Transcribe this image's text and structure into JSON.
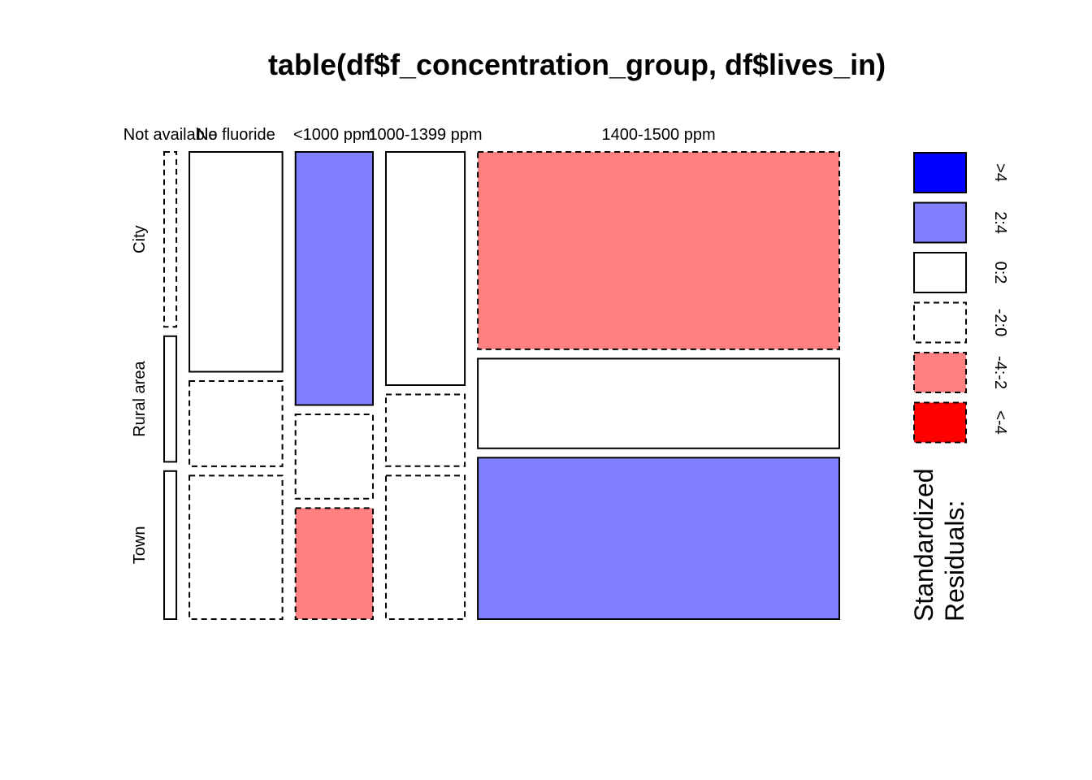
{
  "chart_data": {
    "type": "mosaic",
    "title": "table(df$f_concentration_group, df$lives_in)",
    "columns": [
      "Not available",
      "No fluoride",
      "<1000 ppm",
      "1000-1399 ppm",
      "1400-1500 ppm"
    ],
    "rows": [
      "City",
      "Rural area",
      "Town"
    ],
    "column_shares": [
      0.033,
      0.25,
      0.208,
      0.212,
      0.971
    ],
    "cells": [
      [
        {
          "share": 0.39,
          "residual_bin": "-2:0"
        },
        {
          "share": 0.28,
          "residual_bin": "0:2"
        },
        {
          "share": 0.33,
          "residual_bin": "0:2"
        }
      ],
      [
        {
          "share": 0.49,
          "residual_bin": "0:2"
        },
        {
          "share": 0.19,
          "residual_bin": "-2:0"
        },
        {
          "share": 0.32,
          "residual_bin": "-2:0"
        }
      ],
      [
        {
          "share": 0.57,
          "residual_bin": "2:4"
        },
        {
          "share": 0.19,
          "residual_bin": "-2:0"
        },
        {
          "share": 0.25,
          "residual_bin": "-4:-2"
        }
      ],
      [
        {
          "share": 0.52,
          "residual_bin": "0:2"
        },
        {
          "share": 0.16,
          "residual_bin": "-2:0"
        },
        {
          "share": 0.32,
          "residual_bin": "-2:0"
        }
      ],
      [
        {
          "share": 0.44,
          "residual_bin": "-4:-2"
        },
        {
          "share": 0.2,
          "residual_bin": "0:2"
        },
        {
          "share": 0.36,
          "residual_bin": "2:4"
        }
      ]
    ],
    "legend": {
      "title_lines": [
        "Standardized",
        "Residuals:"
      ],
      "bins": [
        {
          "label": ">4",
          "fill": "#0000FF",
          "dashed": false
        },
        {
          "label": "2:4",
          "fill": "#8080FF",
          "dashed": false
        },
        {
          "label": "0:2",
          "fill": "#FFFFFF",
          "dashed": false
        },
        {
          "label": "-2:0",
          "fill": "#FFFFFF",
          "dashed": true
        },
        {
          "label": "-4:-2",
          "fill": "#FF8080",
          "dashed": true
        },
        {
          "label": "<-4",
          "fill": "#FF0000",
          "dashed": true
        }
      ]
    }
  }
}
